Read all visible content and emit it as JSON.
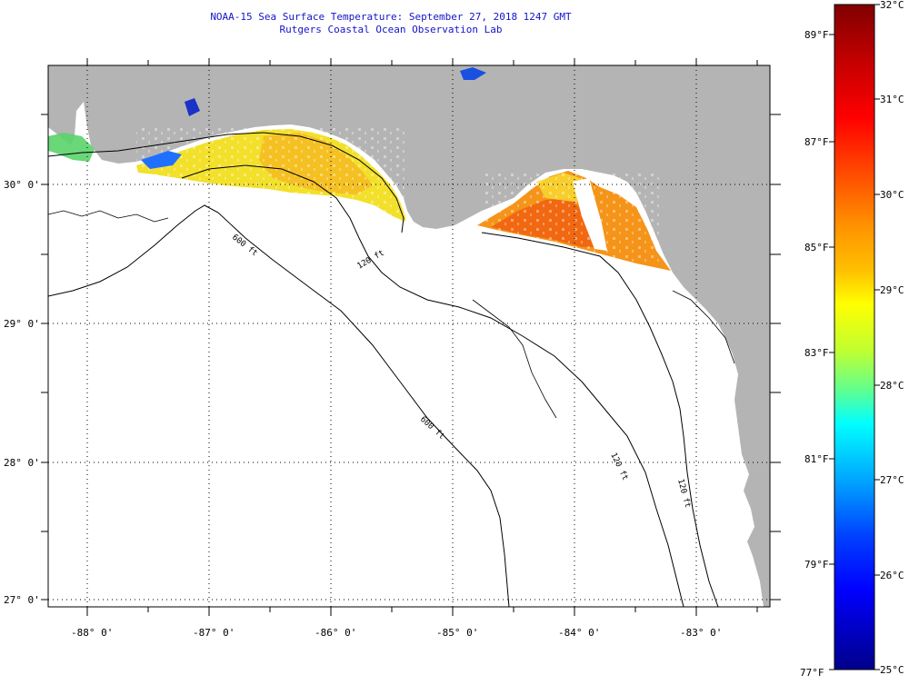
{
  "header": {
    "title": "NOAA-15 Sea Surface Temperature:  September 27, 2018 1247 GMT",
    "subtitle": "Rutgers Coastal Ocean Observation Lab"
  },
  "map": {
    "lat_labels": [
      "30° 0'",
      "29° 0'",
      "28° 0'",
      "27° 0'"
    ],
    "lon_labels": [
      "-88° 0'",
      "-87° 0'",
      "-86° 0'",
      "-85° 0'",
      "-84° 0'",
      "-83° 0'"
    ],
    "contours": [
      {
        "label": "600 ft"
      },
      {
        "label": "120 ft"
      },
      {
        "label": "600 ft"
      },
      {
        "label": "120 ft"
      },
      {
        "label": "120 ft"
      }
    ],
    "colors": {
      "land": "#b4b4b4",
      "water": "#ffffff",
      "grid": "#000000"
    }
  },
  "colorbar": {
    "celsius_labels": [
      "32°C",
      "31°C",
      "30°C",
      "29°C",
      "28°C",
      "27°C",
      "26°C",
      "25°C"
    ],
    "fahrenheit_labels": [
      "89°F",
      "87°F",
      "85°F",
      "83°F",
      "81°F",
      "79°F",
      "77°F"
    ],
    "colors": [
      "#800000",
      "#c00000",
      "#ff0000",
      "#ff5000",
      "#ff9000",
      "#ffc000",
      "#ffff00",
      "#c0ff30",
      "#60ff90",
      "#00ffff",
      "#00a0ff",
      "#0040ff",
      "#0000ff",
      "#00008a"
    ]
  }
}
